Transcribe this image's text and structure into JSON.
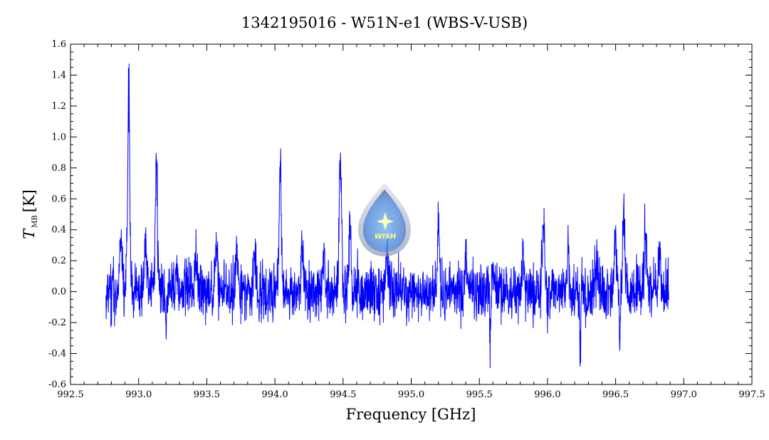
{
  "chart_data": {
    "type": "line",
    "title": "1342195016 - W51N-e1 (WBS-V-USB)",
    "xlabel": "Frequency [GHz]",
    "ylabel": {
      "var": "T",
      "sub": "MB",
      "unit": "[K]"
    },
    "xlim": [
      992.5,
      997.5
    ],
    "ylim": [
      -0.6,
      1.6
    ],
    "x_ticks": [
      "992.5",
      "993.0",
      "993.5",
      "994.0",
      "994.5",
      "995.0",
      "995.5",
      "996.0",
      "996.5",
      "997.0",
      "997.5"
    ],
    "y_ticks": [
      "-0.6",
      "-0.4",
      "-0.2",
      "0.0",
      "0.2",
      "0.4",
      "0.6",
      "0.8",
      "1.0",
      "1.2",
      "1.4",
      "1.6"
    ],
    "grid": false,
    "legend": "none",
    "color": "#0000ff",
    "series": [
      {
        "x_range": [
          992.76,
          996.89
        ],
        "noise_rms": 0.09,
        "peaks": [
          {
            "x": 992.8,
            "y": 0.28
          },
          {
            "x": 992.87,
            "y": 0.45
          },
          {
            "x": 992.925,
            "y": 1.5
          },
          {
            "x": 993.05,
            "y": 0.35
          },
          {
            "x": 993.13,
            "y": 0.82
          },
          {
            "x": 993.28,
            "y": 0.25
          },
          {
            "x": 993.42,
            "y": 0.27
          },
          {
            "x": 993.57,
            "y": 0.34
          },
          {
            "x": 993.72,
            "y": 0.3
          },
          {
            "x": 993.85,
            "y": 0.28
          },
          {
            "x": 994.04,
            "y": 0.84
          },
          {
            "x": 994.2,
            "y": 0.34
          },
          {
            "x": 994.36,
            "y": 0.28
          },
          {
            "x": 994.48,
            "y": 0.9
          },
          {
            "x": 994.55,
            "y": 0.45
          },
          {
            "x": 994.82,
            "y": 0.3
          },
          {
            "x": 995.2,
            "y": 0.46
          },
          {
            "x": 995.4,
            "y": 0.25
          },
          {
            "x": 995.6,
            "y": 0.23
          },
          {
            "x": 995.82,
            "y": 0.24
          },
          {
            "x": 995.97,
            "y": 0.52
          },
          {
            "x": 996.15,
            "y": 0.25
          },
          {
            "x": 996.36,
            "y": 0.22
          },
          {
            "x": 996.5,
            "y": 0.41
          },
          {
            "x": 996.56,
            "y": 0.53
          },
          {
            "x": 996.72,
            "y": 0.45
          },
          {
            "x": 996.82,
            "y": 0.28
          }
        ],
        "dips": [
          {
            "x": 992.8,
            "y": -0.45
          },
          {
            "x": 992.92,
            "y": -0.43
          },
          {
            "x": 993.2,
            "y": -0.2
          },
          {
            "x": 995.58,
            "y": -0.4
          },
          {
            "x": 996.24,
            "y": -0.41
          },
          {
            "x": 996.53,
            "y": -0.38
          }
        ]
      }
    ]
  },
  "logo": {
    "text": "WISH"
  }
}
